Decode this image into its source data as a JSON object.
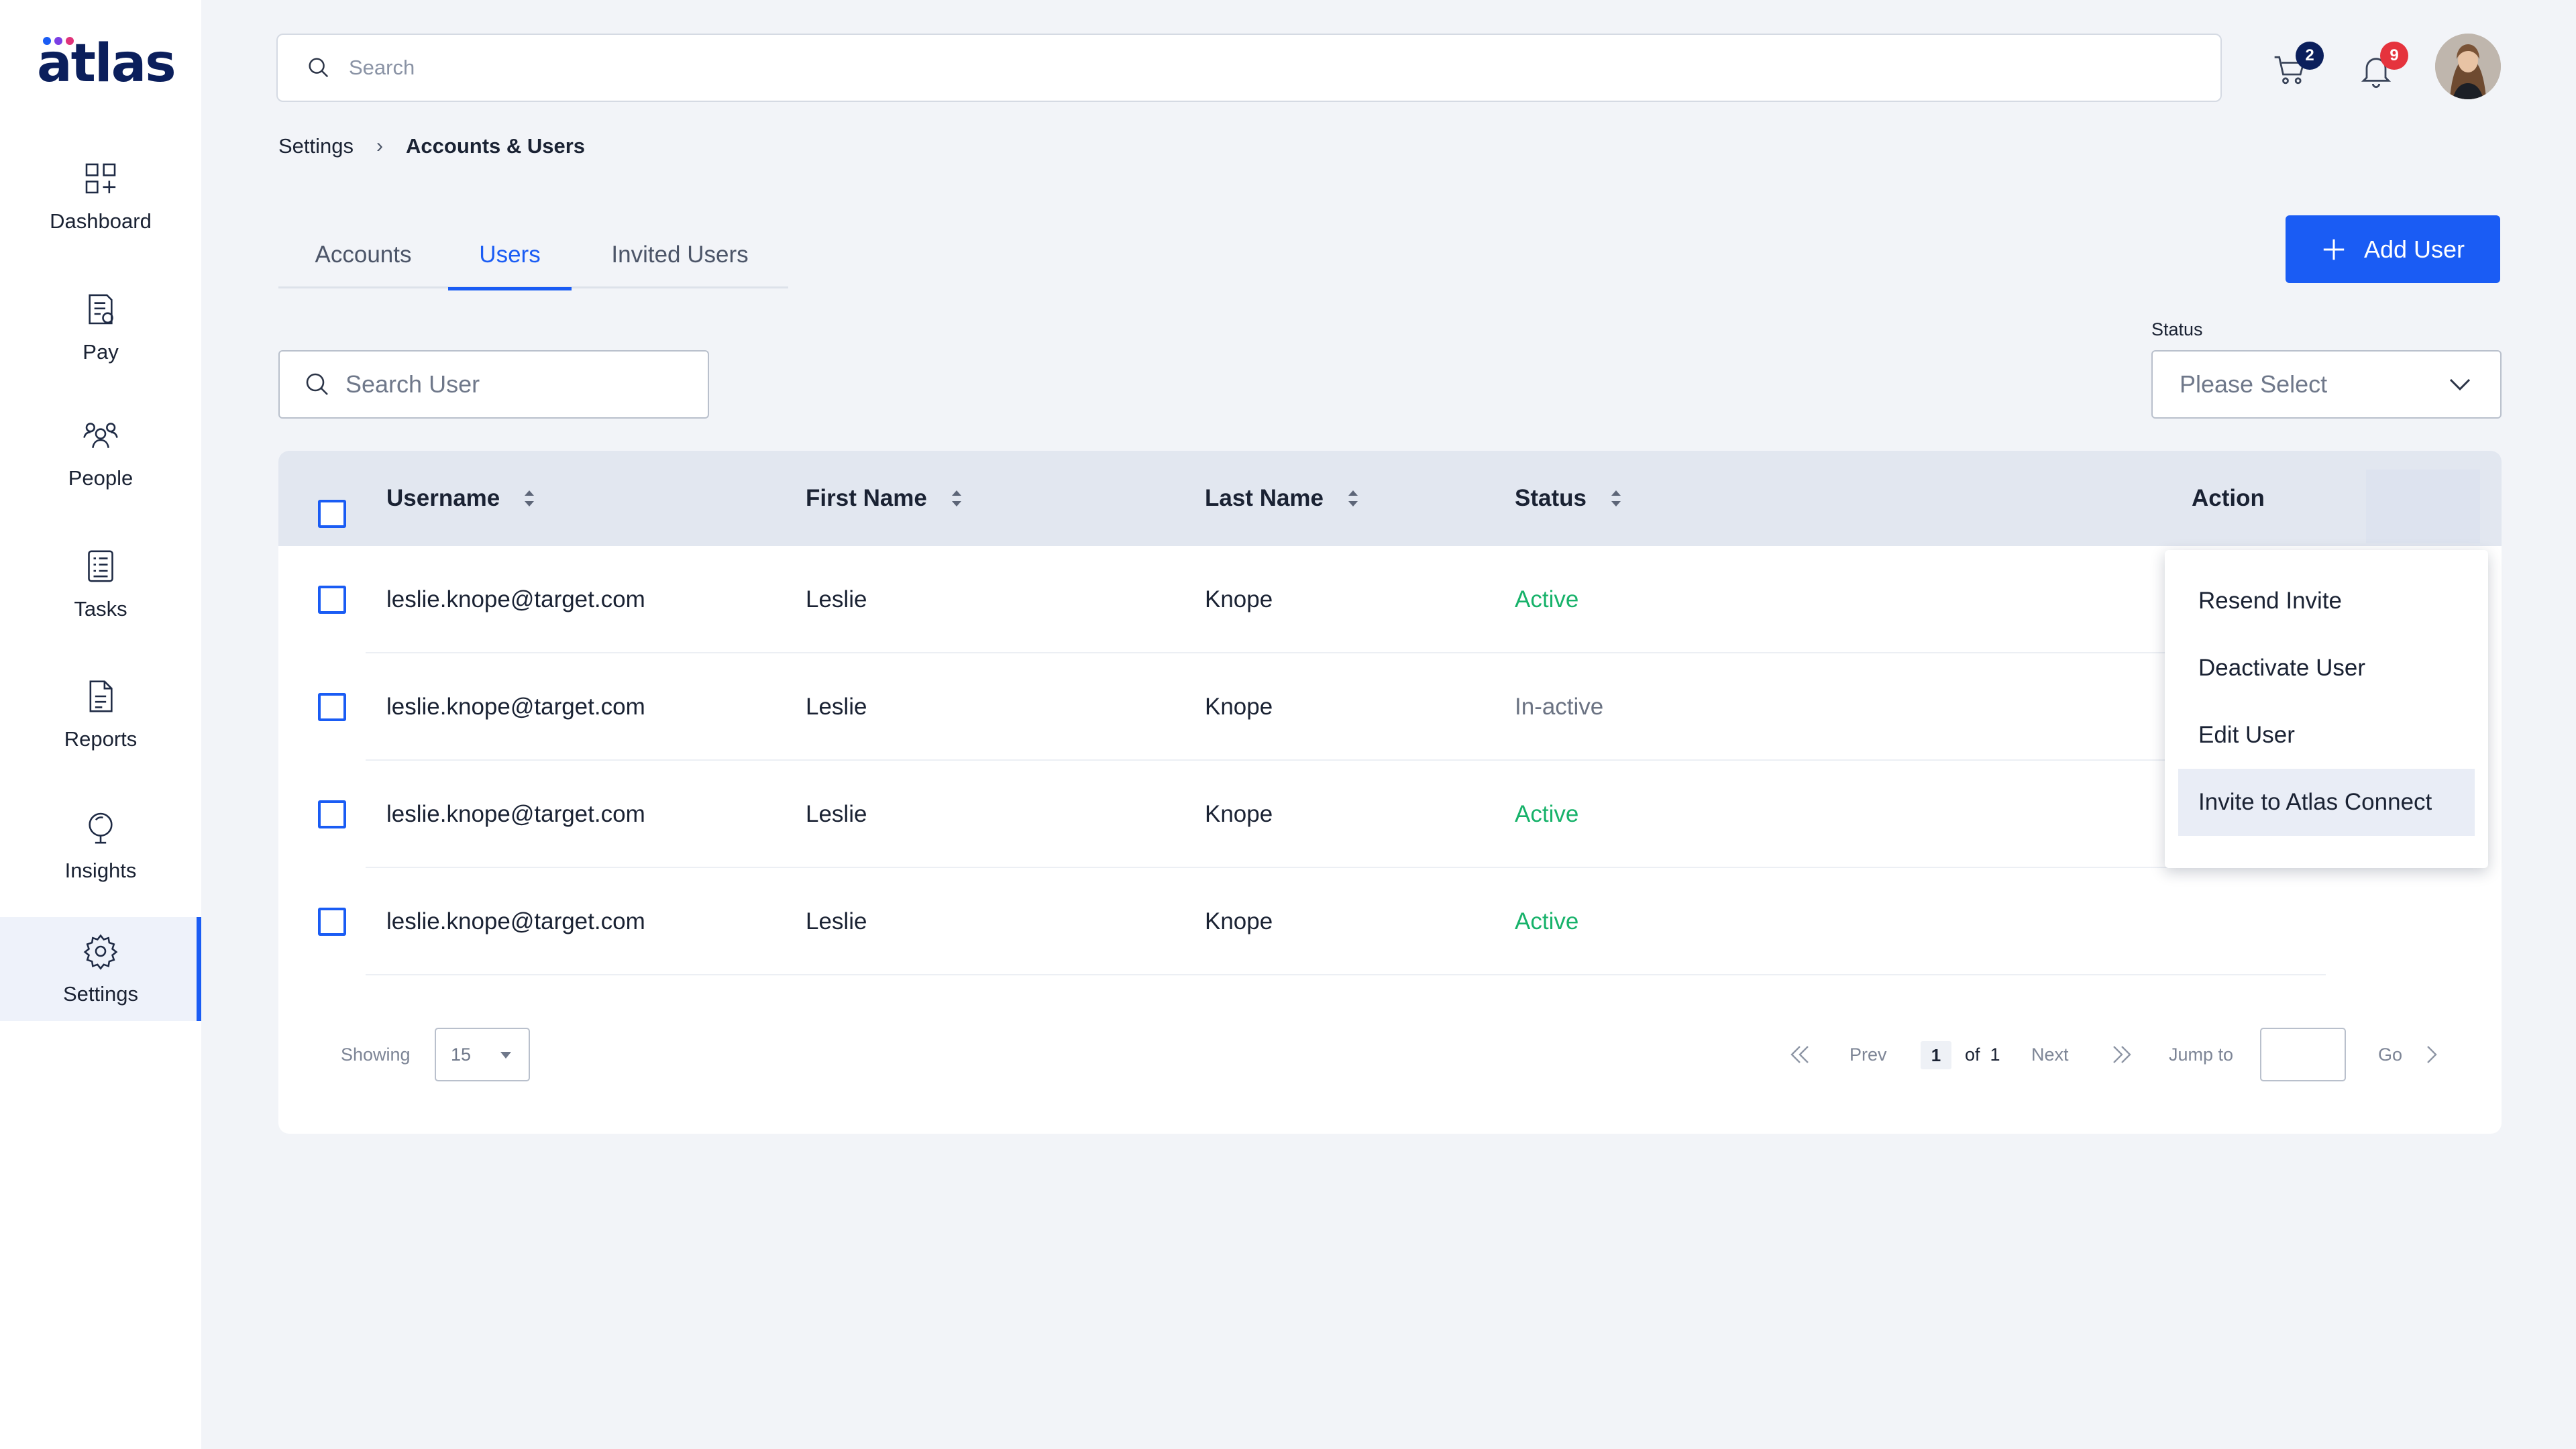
{
  "brand": {
    "name": "atlas",
    "dot_colors": [
      "#1a5cf4",
      "#7b3fe4",
      "#e0337a"
    ]
  },
  "sidebar": {
    "items": [
      {
        "label": "Dashboard",
        "icon": "dashboard-icon"
      },
      {
        "label": "Pay",
        "icon": "pay-icon"
      },
      {
        "label": "People",
        "icon": "people-icon"
      },
      {
        "label": "Tasks",
        "icon": "tasks-icon"
      },
      {
        "label": "Reports",
        "icon": "reports-icon"
      },
      {
        "label": "Insights",
        "icon": "insights-icon"
      },
      {
        "label": "Settings",
        "icon": "gear-icon",
        "active": true
      }
    ]
  },
  "header": {
    "search_placeholder": "Search",
    "cart_count": "2",
    "notification_count": "9",
    "cart_badge_color": "#0b1f5c",
    "notification_badge_color": "#e5333d"
  },
  "breadcrumb": {
    "parent": "Settings",
    "current": "Accounts & Users"
  },
  "tabs": [
    {
      "label": "Accounts"
    },
    {
      "label": "Users",
      "active": true
    },
    {
      "label": "Invited Users"
    }
  ],
  "actions": {
    "add_user": "Add User"
  },
  "filters": {
    "search_placeholder": "Search User",
    "status_label": "Status",
    "status_placeholder": "Please Select"
  },
  "table": {
    "columns": {
      "username": "Username",
      "first_name": "First Name",
      "last_name": "Last Name",
      "status": "Status",
      "action": "Action"
    },
    "rows": [
      {
        "username": "leslie.knope@target.com",
        "first_name": "Leslie",
        "last_name": "Knope",
        "status": "Active"
      },
      {
        "username": "leslie.knope@target.com",
        "first_name": "Leslie",
        "last_name": "Knope",
        "status": "In-active"
      },
      {
        "username": "leslie.knope@target.com",
        "first_name": "Leslie",
        "last_name": "Knope",
        "status": "Active"
      },
      {
        "username": "leslie.knope@target.com",
        "first_name": "Leslie",
        "last_name": "Knope",
        "status": "Active"
      }
    ]
  },
  "action_menu": {
    "items": [
      {
        "label": "Resend Invite"
      },
      {
        "label": "Deactivate User"
      },
      {
        "label": "Edit User"
      },
      {
        "label": "Invite to Atlas Connect",
        "hover": true
      }
    ]
  },
  "pagination": {
    "showing_label": "Showing",
    "page_size": "15",
    "prev_label": "Prev",
    "current_page": "1",
    "of_label": "of",
    "total_pages": "1",
    "next_label": "Next",
    "jump_label": "Jump to",
    "go_label": "Go"
  },
  "colors": {
    "accent": "#1a5cf4",
    "active_status": "#17b26a",
    "inactive_status": "#6b7383"
  }
}
